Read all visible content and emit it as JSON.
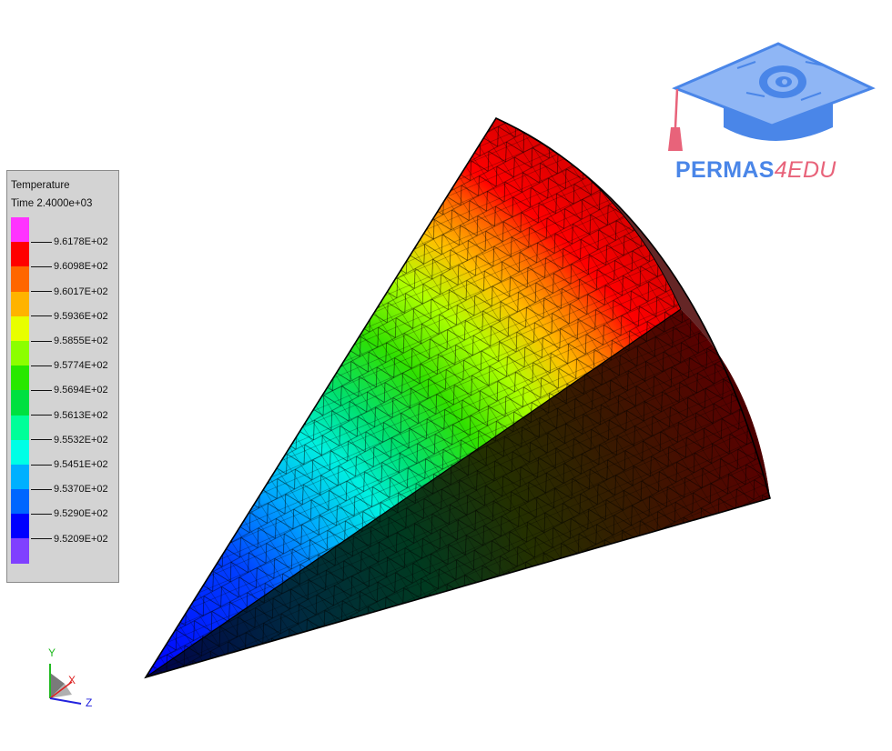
{
  "legend": {
    "title": "Temperature",
    "subtitle": "Time 2.4000e+03",
    "colors": [
      "#ff33ff",
      "#ff0000",
      "#ff6600",
      "#ffb300",
      "#e8ff00",
      "#8cff00",
      "#28e800",
      "#00e040",
      "#00ff99",
      "#00ffe6",
      "#00b0ff",
      "#0066ff",
      "#0000ff",
      "#8040ff"
    ],
    "labels": [
      "9.6178E+02",
      "9.6098E+02",
      "9.6017E+02",
      "9.5936E+02",
      "9.5855E+02",
      "9.5774E+02",
      "9.5694E+02",
      "9.5613E+02",
      "9.5532E+02",
      "9.5451E+02",
      "9.5370E+02",
      "9.5290E+02",
      "9.5209E+02"
    ]
  },
  "triad": {
    "y_label": "Y",
    "x_label": "X",
    "z_label": "Z",
    "y_color": "#22bb22",
    "x_color": "#dd2222",
    "z_color": "#2222dd"
  },
  "logo": {
    "text_main": "PERMAS",
    "text_accent": "4EDU",
    "main_color": "#4a86e8",
    "accent_color": "#e8637a"
  },
  "model": {
    "description_colors": {
      "hot": "#ff0000",
      "cold": "#0000ff"
    }
  }
}
